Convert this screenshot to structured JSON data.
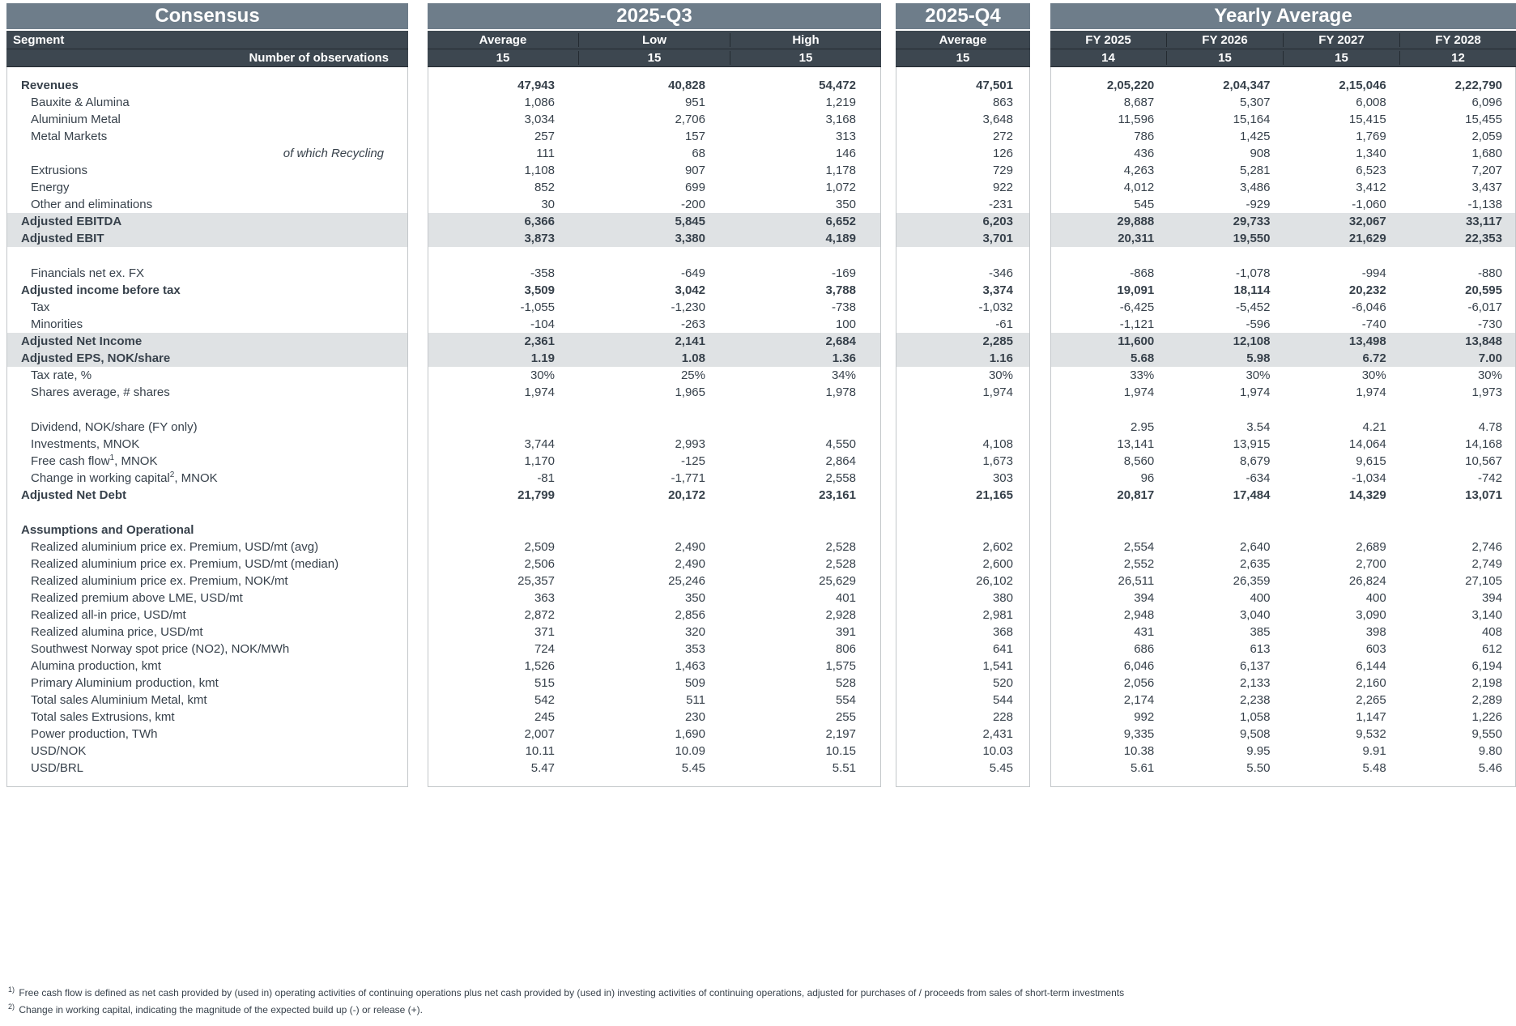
{
  "header": {
    "consensus_title": "Consensus",
    "segment_label": "Segment",
    "observations_label": "Number of observations",
    "groups": [
      {
        "title": "2025-Q3",
        "columns": [
          "Average",
          "Low",
          "High"
        ],
        "observations": [
          "15",
          "15",
          "15"
        ]
      },
      {
        "title": "2025-Q4",
        "columns": [
          "Average"
        ],
        "observations": [
          "15"
        ]
      },
      {
        "title": "Yearly Average",
        "columns": [
          "FY 2025",
          "FY 2026",
          "FY 2027",
          "FY 2028"
        ],
        "observations": [
          "14",
          "15",
          "15",
          "12"
        ]
      }
    ]
  },
  "rows": [
    {
      "label": "Revenues",
      "bold": true,
      "values": [
        "47,943",
        "40,828",
        "54,472",
        "47,501",
        "2,05,220",
        "2,04,347",
        "2,15,046",
        "2,22,790"
      ]
    },
    {
      "label": "Bauxite & Alumina",
      "values": [
        "1,086",
        "951",
        "1,219",
        "863",
        "8,687",
        "5,307",
        "6,008",
        "6,096"
      ]
    },
    {
      "label": "Aluminium Metal",
      "values": [
        "3,034",
        "2,706",
        "3,168",
        "3,648",
        "11,596",
        "15,164",
        "15,415",
        "15,455"
      ]
    },
    {
      "label": "Metal Markets",
      "values": [
        "257",
        "157",
        "313",
        "272",
        "786",
        "1,425",
        "1,769",
        "2,059"
      ]
    },
    {
      "label": "of which Recycling",
      "italic_right": true,
      "values": [
        "111",
        "68",
        "146",
        "126",
        "436",
        "908",
        "1,340",
        "1,680"
      ]
    },
    {
      "label": "Extrusions",
      "values": [
        "1,108",
        "907",
        "1,178",
        "729",
        "4,263",
        "5,281",
        "6,523",
        "7,207"
      ]
    },
    {
      "label": "Energy",
      "values": [
        "852",
        "699",
        "1,072",
        "922",
        "4,012",
        "3,486",
        "3,412",
        "3,437"
      ]
    },
    {
      "label": "Other and eliminations",
      "values": [
        "30",
        "-200",
        "350",
        "-231",
        "545",
        "-929",
        "-1,060",
        "-1,138"
      ]
    },
    {
      "label": "Adjusted EBITDA",
      "highlight": true,
      "values": [
        "6,366",
        "5,845",
        "6,652",
        "6,203",
        "29,888",
        "29,733",
        "32,067",
        "33,117"
      ]
    },
    {
      "label": "Adjusted EBIT",
      "highlight": true,
      "values": [
        "3,873",
        "3,380",
        "4,189",
        "3,701",
        "20,311",
        "19,550",
        "21,629",
        "22,353"
      ]
    },
    {
      "blank": true
    },
    {
      "label": "Financials net ex. FX",
      "values": [
        "-358",
        "-649",
        "-169",
        "-346",
        "-868",
        "-1,078",
        "-994",
        "-880"
      ]
    },
    {
      "label": "Adjusted income before tax",
      "bold": true,
      "values": [
        "3,509",
        "3,042",
        "3,788",
        "3,374",
        "19,091",
        "18,114",
        "20,232",
        "20,595"
      ]
    },
    {
      "label": "Tax",
      "values": [
        "-1,055",
        "-1,230",
        "-738",
        "-1,032",
        "-6,425",
        "-5,452",
        "-6,046",
        "-6,017"
      ]
    },
    {
      "label": "Minorities",
      "values": [
        "-104",
        "-263",
        "100",
        "-61",
        "-1,121",
        "-596",
        "-740",
        "-730"
      ]
    },
    {
      "label": "Adjusted Net Income",
      "highlight": true,
      "values": [
        "2,361",
        "2,141",
        "2,684",
        "2,285",
        "11,600",
        "12,108",
        "13,498",
        "13,848"
      ]
    },
    {
      "label": "Adjusted EPS, NOK/share",
      "highlight": true,
      "values": [
        "1.19",
        "1.08",
        "1.36",
        "1.16",
        "5.68",
        "5.98",
        "6.72",
        "7.00"
      ]
    },
    {
      "label": "Tax rate, %",
      "values": [
        "30%",
        "25%",
        "34%",
        "30%",
        "33%",
        "30%",
        "30%",
        "30%"
      ]
    },
    {
      "label": "Shares average, # shares",
      "values": [
        "1,974",
        "1,965",
        "1,978",
        "1,974",
        "1,974",
        "1,974",
        "1,974",
        "1,973"
      ]
    },
    {
      "blank": true
    },
    {
      "label": "Dividend, NOK/share (FY only)",
      "values": [
        "",
        "",
        "",
        "",
        "2.95",
        "3.54",
        "4.21",
        "4.78"
      ]
    },
    {
      "label": "Investments, MNOK",
      "values": [
        "3,744",
        "2,993",
        "4,550",
        "4,108",
        "13,141",
        "13,915",
        "14,064",
        "14,168"
      ]
    },
    {
      "label": "Free cash flow",
      "sup": "1",
      "suffix": ", MNOK",
      "values": [
        "1,170",
        "-125",
        "2,864",
        "1,673",
        "8,560",
        "8,679",
        "9,615",
        "10,567"
      ]
    },
    {
      "label": "Change in working capital",
      "sup": "2",
      "suffix": ", MNOK",
      "values": [
        "-81",
        "-1,771",
        "2,558",
        "303",
        "96",
        "-634",
        "-1,034",
        "-742"
      ]
    },
    {
      "label": "Adjusted Net Debt",
      "bold": true,
      "values": [
        "21,799",
        "20,172",
        "23,161",
        "21,165",
        "20,817",
        "17,484",
        "14,329",
        "13,071"
      ]
    },
    {
      "blank": true
    },
    {
      "label": "Assumptions and Operational",
      "bold": true,
      "values": [
        "",
        "",
        "",
        "",
        "",
        "",
        "",
        ""
      ]
    },
    {
      "label": "Realized aluminium price ex. Premium, USD/mt (avg)",
      "values": [
        "2,509",
        "2,490",
        "2,528",
        "2,602",
        "2,554",
        "2,640",
        "2,689",
        "2,746"
      ]
    },
    {
      "label": "Realized aluminium price ex. Premium, USD/mt (median)",
      "values": [
        "2,506",
        "2,490",
        "2,528",
        "2,600",
        "2,552",
        "2,635",
        "2,700",
        "2,749"
      ]
    },
    {
      "label": "Realized aluminium price ex. Premium, NOK/mt",
      "values": [
        "25,357",
        "25,246",
        "25,629",
        "26,102",
        "26,511",
        "26,359",
        "26,824",
        "27,105"
      ]
    },
    {
      "label": "Realized premium above LME, USD/mt",
      "values": [
        "363",
        "350",
        "401",
        "380",
        "394",
        "400",
        "400",
        "394"
      ]
    },
    {
      "label": "Realized all-in price, USD/mt",
      "values": [
        "2,872",
        "2,856",
        "2,928",
        "2,981",
        "2,948",
        "3,040",
        "3,090",
        "3,140"
      ]
    },
    {
      "label": "Realized alumina price, USD/mt",
      "values": [
        "371",
        "320",
        "391",
        "368",
        "431",
        "385",
        "398",
        "408"
      ]
    },
    {
      "label": "Southwest Norway spot price (NO2), NOK/MWh",
      "values": [
        "724",
        "353",
        "806",
        "641",
        "686",
        "613",
        "603",
        "612"
      ]
    },
    {
      "label": "Alumina production, kmt",
      "values": [
        "1,526",
        "1,463",
        "1,575",
        "1,541",
        "6,046",
        "6,137",
        "6,144",
        "6,194"
      ]
    },
    {
      "label": "Primary Aluminium production, kmt",
      "values": [
        "515",
        "509",
        "528",
        "520",
        "2,056",
        "2,133",
        "2,160",
        "2,198"
      ]
    },
    {
      "label": "Total sales Aluminium Metal, kmt",
      "values": [
        "542",
        "511",
        "554",
        "544",
        "2,174",
        "2,238",
        "2,265",
        "2,289"
      ]
    },
    {
      "label": "Total sales Extrusions, kmt",
      "values": [
        "245",
        "230",
        "255",
        "228",
        "992",
        "1,058",
        "1,147",
        "1,226"
      ]
    },
    {
      "label": "Power production, TWh",
      "values": [
        "2,007",
        "1,690",
        "2,197",
        "2,431",
        "9,335",
        "9,508",
        "9,532",
        "9,550"
      ]
    },
    {
      "label": "USD/NOK",
      "values": [
        "10.11",
        "10.09",
        "10.15",
        "10.03",
        "10.38",
        "9.95",
        "9.91",
        "9.80"
      ]
    },
    {
      "label": "USD/BRL",
      "values": [
        "5.47",
        "5.45",
        "5.51",
        "5.45",
        "5.61",
        "5.50",
        "5.48",
        "5.46"
      ]
    }
  ],
  "footnotes": [
    {
      "marker": "1)",
      "text": "Free cash flow is defined as net cash provided by (used in) operating activities of continuing operations plus net cash provided by (used in) investing activities of continuing operations, adjusted for purchases of / proceeds from sales of short-term investments"
    },
    {
      "marker": "2)",
      "text": "Change in working capital, indicating the magnitude of the expected build up (-) or release (+)."
    }
  ],
  "colors": {
    "group_header_bg": "#6E7D8A",
    "column_header_bg": "#3D4750",
    "header_separator": "#242B31",
    "highlight_row_bg": "#DFE2E4",
    "text": "#37414B",
    "body_border": "#C3C7CA"
  }
}
